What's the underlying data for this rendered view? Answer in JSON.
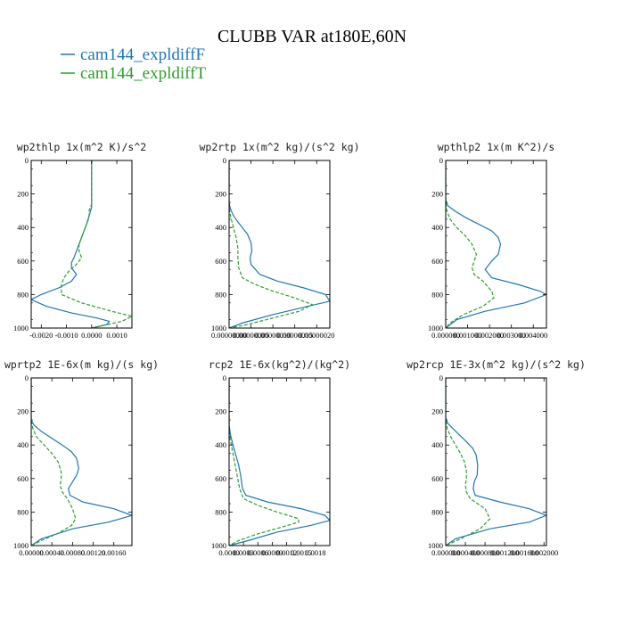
{
  "figure": {
    "title": "CLUBB VAR at180E,60N",
    "legend": [
      {
        "label": "cam144_expldiffF",
        "color": "#1f77b4",
        "dash": "solid"
      },
      {
        "label": "cam144_expldiffT",
        "color": "#2ca02c",
        "dash": "dashed"
      }
    ],
    "colors": {
      "series_f": "#1f77b4",
      "series_t": "#2ca02c",
      "axis": "#000000"
    }
  },
  "chart_data": [
    {
      "type": "line",
      "title": "wp2thlp  1x(m^2 K)/s^2",
      "xlim": [
        -0.0024,
        0.0016
      ],
      "ylim": [
        1000,
        0
      ],
      "xticks": [
        -0.002,
        -0.001,
        0,
        0.001
      ],
      "xtick_labels": [
        "-0.0020",
        "-0.0010",
        "0.0000",
        "0.0010"
      ],
      "yticks": [
        0,
        200,
        400,
        600,
        800,
        1000
      ],
      "ytick_labels": [
        "0",
        "200",
        "400",
        "600",
        "800",
        "1000"
      ],
      "series": [
        {
          "name": "cam144_expldiffF",
          "x": [
            0.0,
            0.0,
            0.0,
            0.0,
            -0.0001,
            -0.0002,
            -0.0003,
            -0.0004,
            -0.0005,
            -0.0006,
            -0.0007,
            -0.0008,
            -0.0008,
            -0.0007,
            -0.0006,
            -0.0008,
            -0.0013,
            -0.002,
            -0.0024,
            -0.0018,
            -0.0008,
            0.0002,
            0.0007,
            0.0006,
            0.0
          ],
          "y": [
            0,
            100,
            200,
            280,
            330,
            380,
            420,
            460,
            500,
            540,
            580,
            610,
            640,
            660,
            680,
            720,
            760,
            800,
            830,
            870,
            910,
            940,
            960,
            980,
            1000
          ]
        },
        {
          "name": "cam144_expldiffT",
          "x": [
            0.0,
            0.0,
            0.0,
            0.0,
            -0.0001,
            -0.0001,
            -0.0002,
            -0.0003,
            -0.0004,
            -0.0005,
            -0.0005,
            -0.0004,
            -0.0006,
            -0.0009,
            -0.0011,
            -0.0012,
            -0.0012,
            -0.0004,
            0.0008,
            0.0016,
            0.0012,
            0.0
          ],
          "y": [
            0,
            100,
            200,
            260,
            300,
            340,
            380,
            420,
            460,
            500,
            540,
            580,
            620,
            660,
            700,
            740,
            800,
            850,
            900,
            930,
            960,
            1000
          ]
        }
      ]
    },
    {
      "type": "line",
      "title": "wp2rtp  1x(m^2 kg)/(s^2 kg)",
      "xlim": [
        0,
        2.3e-07
      ],
      "ylim": [
        1000,
        0
      ],
      "xticks": [
        0,
        5e-08,
        1e-07,
        1.5e-07,
        2e-07
      ],
      "xtick_labels": [
        "0.00000000",
        "0.00000005",
        "0.00000010",
        "0.00000015",
        "0.00000020"
      ],
      "yticks": [
        0,
        200,
        400,
        600,
        800,
        1000
      ],
      "ytick_labels": [
        "0",
        "200",
        "400",
        "600",
        "800",
        "1000"
      ],
      "series": [
        {
          "name": "cam144_expldiffF",
          "x": [
            0.0,
            0.0,
            0.0,
            0.0,
            2e-09,
            8e-09,
            1.8e-08,
            3e-08,
            4.2e-08,
            5e-08,
            5.2e-08,
            4.8e-08,
            5e-08,
            7e-08,
            1.1e-07,
            1.7e-07,
            2.2e-07,
            2.3e-07,
            1.8e-07,
            1e-07,
            3e-08,
            0.0
          ],
          "y": [
            0,
            100,
            200,
            250,
            280,
            320,
            360,
            400,
            440,
            490,
            540,
            580,
            620,
            680,
            720,
            760,
            800,
            840,
            870,
            920,
            970,
            1000
          ]
        },
        {
          "name": "cam144_expldiffT",
          "x": [
            0.0,
            0.0,
            0.0,
            0.0,
            4e-09,
            1e-08,
            1.6e-08,
            2e-08,
            2e-08,
            2.2e-08,
            3e-08,
            6e-08,
            1e-07,
            1.5e-07,
            1.9e-07,
            1.6e-07,
            1e-07,
            4e-08,
            0.0
          ],
          "y": [
            0,
            100,
            200,
            280,
            340,
            400,
            460,
            520,
            580,
            640,
            700,
            740,
            780,
            820,
            860,
            900,
            940,
            980,
            1000
          ]
        }
      ]
    },
    {
      "type": "line",
      "title": "wpthlp2  1x(m K^2)/s",
      "xlim": [
        0,
        0.0046
      ],
      "ylim": [
        1000,
        0
      ],
      "xticks": [
        0,
        0.001,
        0.002,
        0.003,
        0.004
      ],
      "xtick_labels": [
        "0.000000",
        "0.001000",
        "0.002000",
        "0.003000",
        "0.004000"
      ],
      "yticks": [
        0,
        200,
        400,
        600,
        800,
        1000
      ],
      "ytick_labels": [
        "0",
        "200",
        "400",
        "600",
        "800",
        "1000"
      ],
      "series": [
        {
          "name": "cam144_expldiffF",
          "x": [
            0.0,
            0.0,
            0.0,
            0.0,
            0.0001,
            0.0004,
            0.0009,
            0.0015,
            0.0021,
            0.0024,
            0.0025,
            0.0024,
            0.0021,
            0.0018,
            0.0021,
            0.0033,
            0.0043,
            0.0046,
            0.0036,
            0.0018,
            0.0005,
            0.0
          ],
          "y": [
            0,
            100,
            200,
            240,
            270,
            300,
            340,
            380,
            420,
            460,
            500,
            560,
            600,
            650,
            700,
            740,
            780,
            800,
            850,
            900,
            950,
            1000
          ]
        },
        {
          "name": "cam144_expldiffT",
          "x": [
            0.0,
            0.0,
            0.0,
            0.0,
            5e-05,
            0.0002,
            0.0005,
            0.0009,
            0.0012,
            0.0014,
            0.0013,
            0.0012,
            0.0013,
            0.0017,
            0.0021,
            0.0022,
            0.0017,
            0.0008,
            0.0002,
            0.0
          ],
          "y": [
            0,
            100,
            200,
            250,
            300,
            350,
            400,
            450,
            500,
            560,
            600,
            640,
            680,
            720,
            780,
            820,
            870,
            920,
            970,
            1000
          ]
        }
      ]
    },
    {
      "type": "line",
      "title": "wprtp2  1E-6x(m kg)/(s kg)",
      "xlim": [
        0,
        0.00195
      ],
      "ylim": [
        1000,
        0
      ],
      "xticks": [
        0,
        0.0004,
        0.0008,
        0.0012,
        0.0016
      ],
      "xtick_labels": [
        "0.00000",
        "0.00040",
        "0.00080",
        "0.00120",
        "0.00160"
      ],
      "yticks": [
        0,
        200,
        400,
        600,
        800,
        1000
      ],
      "ytick_labels": [
        "0",
        "200",
        "400",
        "600",
        "800",
        "1000"
      ],
      "series": [
        {
          "name": "cam144_expldiffF",
          "x": [
            0.0,
            0.0,
            0.0,
            0.0,
            5e-05,
            0.0002,
            0.0004,
            0.0006,
            0.00078,
            0.00088,
            0.00092,
            0.00088,
            0.0008,
            0.00072,
            0.00075,
            0.001,
            0.0016,
            0.00195,
            0.0015,
            0.0008,
            0.0002,
            0.0
          ],
          "y": [
            0,
            100,
            200,
            250,
            280,
            320,
            360,
            400,
            440,
            480,
            540,
            580,
            620,
            660,
            700,
            740,
            780,
            820,
            860,
            900,
            960,
            1000
          ]
        },
        {
          "name": "cam144_expldiffT",
          "x": [
            0.0,
            0.0,
            0.0,
            0.0,
            3e-05,
            0.0001,
            0.00025,
            0.0004,
            0.00052,
            0.00058,
            0.00058,
            0.00056,
            0.0006,
            0.0007,
            0.0008,
            0.00086,
            0.00078,
            0.0005,
            0.0002,
            0.0
          ],
          "y": [
            0,
            100,
            200,
            250,
            300,
            350,
            400,
            450,
            500,
            560,
            600,
            640,
            680,
            720,
            780,
            840,
            880,
            930,
            970,
            1000
          ]
        }
      ]
    },
    {
      "type": "line",
      "title": "rcp2  1E-6x(kg^2)/(kg^2)",
      "xlim": [
        0,
        0.0021
      ],
      "ylim": [
        1000,
        0
      ],
      "xticks": [
        0,
        0.0003,
        0.0006,
        0.0009,
        0.0012,
        0.0015,
        0.0018
      ],
      "xtick_labels": [
        "0.0000",
        "0.0003",
        "0.0006",
        "0.0009",
        "0.0012",
        "0.0015",
        "0.0018"
      ],
      "yticks": [
        0,
        200,
        400,
        600,
        800,
        1000
      ],
      "ytick_labels": [
        "0",
        "200",
        "400",
        "600",
        "800",
        "1000"
      ],
      "series": [
        {
          "name": "cam144_expldiffF",
          "x": [
            0.0,
            0.0,
            0.0,
            0.0,
            3e-05,
            8e-05,
            0.00014,
            0.0002,
            0.00024,
            0.00026,
            0.00028,
            0.00035,
            0.0008,
            0.0015,
            0.002,
            0.0021,
            0.0017,
            0.001,
            0.0004,
            0.0
          ],
          "y": [
            0,
            100,
            200,
            280,
            340,
            400,
            460,
            520,
            580,
            620,
            660,
            700,
            740,
            780,
            820,
            850,
            880,
            920,
            970,
            1000
          ]
        },
        {
          "name": "cam144_expldiffT",
          "x": [
            0.0,
            0.0,
            0.0,
            0.0,
            2e-05,
            6e-05,
            0.0001,
            0.00014,
            0.00018,
            0.00022,
            0.0003,
            0.0006,
            0.001,
            0.00145,
            0.00145,
            0.0011,
            0.0006,
            0.0002,
            0.0
          ],
          "y": [
            0,
            100,
            200,
            300,
            360,
            420,
            480,
            540,
            600,
            660,
            720,
            760,
            800,
            840,
            860,
            890,
            930,
            970,
            1000
          ]
        }
      ]
    },
    {
      "type": "line",
      "title": "wp2rcp  1E-3x(m^2 kg)/(s^2 kg)",
      "xlim": [
        0,
        0.00205
      ],
      "ylim": [
        1000,
        0
      ],
      "xticks": [
        0,
        0.0004,
        0.0008,
        0.0012,
        0.0016,
        0.002
      ],
      "xtick_labels": [
        "0.000000",
        "0.000400",
        "0.000800",
        "0.001200",
        "0.001600",
        "0.002000"
      ],
      "yticks": [
        0,
        200,
        400,
        600,
        800,
        1000
      ],
      "ytick_labels": [
        "0",
        "200",
        "400",
        "600",
        "800",
        "1000"
      ],
      "series": [
        {
          "name": "cam144_expldiffF",
          "x": [
            0.0,
            0.0,
            0.0,
            0.0,
            4e-05,
            0.00014,
            0.00028,
            0.00042,
            0.00055,
            0.00062,
            0.00065,
            0.00064,
            0.00058,
            0.00056,
            0.0006,
            0.0011,
            0.0017,
            0.00205,
            0.0017,
            0.0009,
            0.0002,
            0.0
          ],
          "y": [
            0,
            100,
            200,
            240,
            270,
            300,
            340,
            380,
            420,
            460,
            520,
            580,
            620,
            660,
            700,
            740,
            780,
            820,
            860,
            900,
            960,
            1000
          ]
        },
        {
          "name": "cam144_expldiffT",
          "x": [
            0.0,
            0.0,
            0.0,
            0.0,
            3e-05,
            0.0001,
            0.0002,
            0.0003,
            0.00038,
            0.00042,
            0.00042,
            0.0004,
            0.00042,
            0.0005,
            0.0008,
            0.0009,
            0.0007,
            0.0003,
            0.0
          ],
          "y": [
            0,
            100,
            200,
            250,
            300,
            350,
            400,
            450,
            500,
            550,
            600,
            640,
            680,
            720,
            780,
            840,
            900,
            960,
            1000
          ]
        }
      ]
    }
  ]
}
